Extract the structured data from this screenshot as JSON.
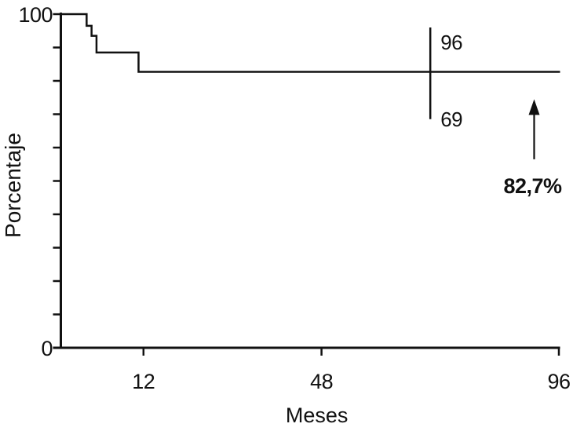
{
  "ink_color": "#111111",
  "background_color": "#ffffff",
  "chart_data": {
    "type": "line",
    "subtype": "kaplan-meier-step",
    "title": "",
    "xlabel": "Meses",
    "ylabel": "Porcentaje",
    "xlim": [
      0,
      96
    ],
    "ylim": [
      0,
      100
    ],
    "x_ticks": [
      12,
      48,
      96
    ],
    "x_tick_labels": [
      "12",
      "48",
      "96"
    ],
    "y_tick_labels": {
      "top": "100",
      "bottom": "0"
    },
    "y_labeled_ticks": [
      0,
      100
    ],
    "y_minor_tick_interval": 10,
    "grid": false,
    "legend": "none",
    "series": [
      {
        "name": "survival-curve",
        "steps": [
          {
            "month": 0,
            "pct": 100
          },
          {
            "month": 0.5,
            "pct": 96.5
          },
          {
            "month": 1.5,
            "pct": 93.5
          },
          {
            "month": 2.5,
            "pct": 88.5
          },
          {
            "month": 11,
            "pct": 82.7
          },
          {
            "month": 96,
            "pct": 82.7
          }
        ],
        "final_pct": 82.7
      }
    ],
    "annotations": {
      "ci_bar": {
        "month": 70,
        "upper_pct": 96,
        "lower_pct": 69,
        "upper_label": "96",
        "lower_label": "69"
      },
      "arrow": {
        "month": 91,
        "tip_pct": 74.5,
        "tail_pct": 56.5,
        "direction": "up",
        "label": "82,7%"
      }
    }
  }
}
